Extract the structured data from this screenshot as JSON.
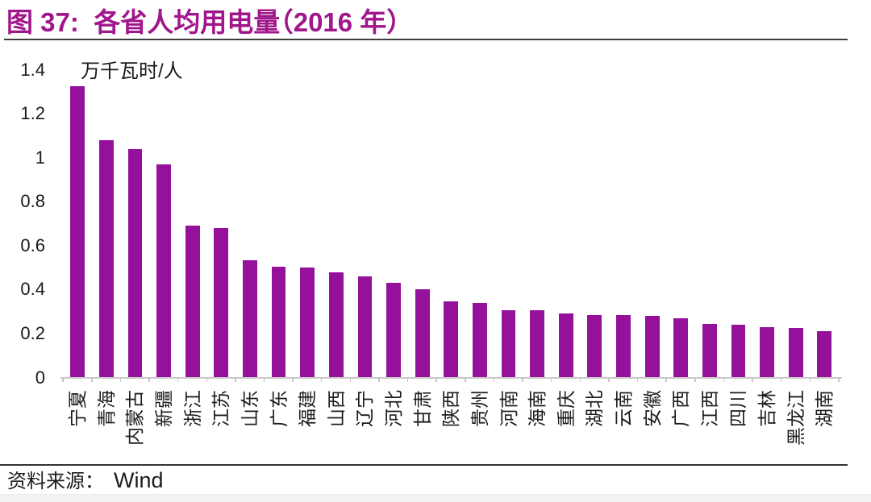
{
  "header": {
    "figure_label": "图 37:",
    "title": "各省人均用电量（2016 年）",
    "title_color": "#A0168B"
  },
  "chart_data": {
    "type": "bar",
    "title": "图 37: 各省人均用电量（2016 年）",
    "ylabel": "万千瓦时/人",
    "xlabel": "",
    "categories": [
      "宁夏",
      "青海",
      "内蒙古",
      "新疆",
      "浙江",
      "江苏",
      "山东",
      "广东",
      "福建",
      "山西",
      "辽宁",
      "河北",
      "甘肃",
      "陕西",
      "贵州",
      "河南",
      "海南",
      "重庆",
      "湖北",
      "云南",
      "安徽",
      "广西",
      "江西",
      "四川",
      "吉林",
      "黑龙江",
      "湖南"
    ],
    "values": [
      1.325,
      1.08,
      1.04,
      0.97,
      0.69,
      0.68,
      0.535,
      0.505,
      0.5,
      0.48,
      0.46,
      0.43,
      0.4,
      0.345,
      0.34,
      0.305,
      0.305,
      0.29,
      0.285,
      0.285,
      0.28,
      0.27,
      0.245,
      0.24,
      0.23,
      0.225,
      0.21
    ],
    "ylim": [
      0,
      1.4
    ],
    "ytick_labels": [
      "0",
      "0.2",
      "0.4",
      "0.6",
      "0.8",
      "1",
      "1.2",
      "1.4"
    ],
    "yticks": [
      0,
      0.2,
      0.4,
      0.6,
      0.8,
      1.0,
      1.2,
      1.4
    ],
    "bar_color": "#95109B",
    "grid": false,
    "legend": false
  },
  "footer": {
    "source_label": "资料来源：",
    "source_value": "Wind"
  }
}
